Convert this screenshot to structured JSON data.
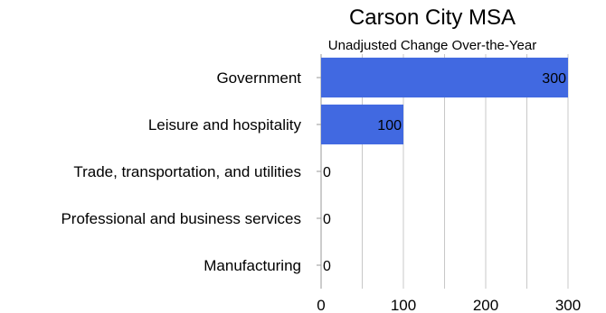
{
  "chart_data": {
    "type": "bar",
    "orientation": "horizontal",
    "title": "Carson City MSA",
    "subtitle": "Unadjusted Change Over-the-Year",
    "categories": [
      "Government",
      "Leisure and hospitality",
      "Trade, transportation, and utilities",
      "Professional and business services",
      "Manufacturing"
    ],
    "values": [
      300,
      100,
      0,
      0,
      0
    ],
    "xlim": [
      0,
      300
    ],
    "major_ticks": [
      0,
      100,
      200,
      300
    ],
    "minor_ticks": [
      50,
      150,
      250
    ],
    "grid": true,
    "bar_color": "#4169e1",
    "xlabel": "",
    "ylabel": ""
  }
}
